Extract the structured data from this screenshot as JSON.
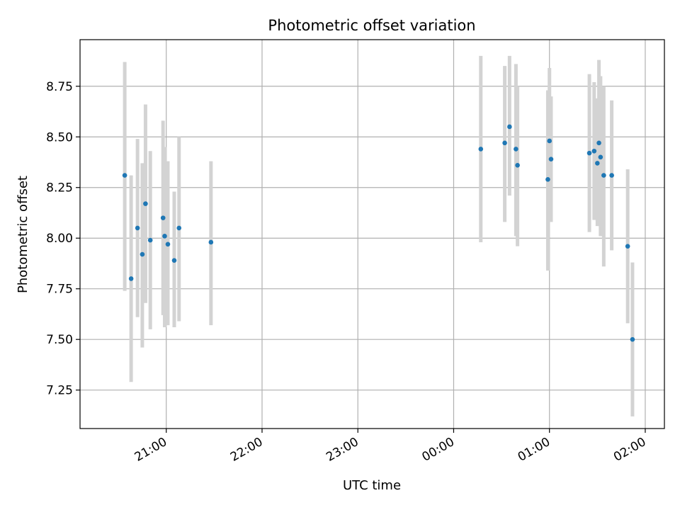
{
  "chart_data": {
    "type": "scatter",
    "title": "Photometric offset variation",
    "xlabel": "UTC time",
    "ylabel": "Photometric offset",
    "x_tick_labels": [
      "21:00",
      "22:00",
      "23:00",
      "00:00",
      "01:00",
      "02:00"
    ],
    "y_tick_labels": [
      "7.25",
      "7.50",
      "7.75",
      "8.00",
      "8.25",
      "8.50",
      "8.75"
    ],
    "grid": true,
    "marker_color": "#1f77b4",
    "errorbar_color": "#d3d3d3",
    "points": [
      {
        "time": "20:34",
        "y": 8.31,
        "lo": 7.74,
        "hi": 8.87
      },
      {
        "time": "20:38",
        "y": 7.8,
        "lo": 7.29,
        "hi": 8.31
      },
      {
        "time": "20:42",
        "y": 8.05,
        "lo": 7.61,
        "hi": 8.49
      },
      {
        "time": "20:45",
        "y": 7.92,
        "lo": 7.46,
        "hi": 8.37
      },
      {
        "time": "20:47",
        "y": 8.17,
        "lo": 7.68,
        "hi": 8.66
      },
      {
        "time": "20:50",
        "y": 7.99,
        "lo": 7.55,
        "hi": 8.43
      },
      {
        "time": "20:58",
        "y": 8.1,
        "lo": 7.62,
        "hi": 8.58
      },
      {
        "time": "20:59",
        "y": 8.01,
        "lo": 7.56,
        "hi": 8.45
      },
      {
        "time": "21:01",
        "y": 7.97,
        "lo": 7.57,
        "hi": 8.38
      },
      {
        "time": "21:05",
        "y": 7.89,
        "lo": 7.56,
        "hi": 8.23
      },
      {
        "time": "21:08",
        "y": 8.05,
        "lo": 7.59,
        "hi": 8.5
      },
      {
        "time": "21:28",
        "y": 7.98,
        "lo": 7.57,
        "hi": 8.38
      },
      {
        "time": "00:17",
        "y": 8.44,
        "lo": 7.98,
        "hi": 8.9
      },
      {
        "time": "00:32",
        "y": 8.47,
        "lo": 8.08,
        "hi": 8.85
      },
      {
        "time": "00:35",
        "y": 8.55,
        "lo": 8.21,
        "hi": 8.9
      },
      {
        "time": "00:39",
        "y": 8.44,
        "lo": 8.01,
        "hi": 8.86
      },
      {
        "time": "00:40",
        "y": 8.36,
        "lo": 7.96,
        "hi": 8.75
      },
      {
        "time": "00:59",
        "y": 8.29,
        "lo": 7.84,
        "hi": 8.73
      },
      {
        "time": "01:00",
        "y": 8.48,
        "lo": 8.12,
        "hi": 8.84
      },
      {
        "time": "01:01",
        "y": 8.39,
        "lo": 8.08,
        "hi": 8.7
      },
      {
        "time": "01:25",
        "y": 8.42,
        "lo": 8.03,
        "hi": 8.81
      },
      {
        "time": "01:28",
        "y": 8.43,
        "lo": 8.09,
        "hi": 8.77
      },
      {
        "time": "01:30",
        "y": 8.37,
        "lo": 8.06,
        "hi": 8.69
      },
      {
        "time": "01:31",
        "y": 8.47,
        "lo": 8.06,
        "hi": 8.88
      },
      {
        "time": "01:32",
        "y": 8.4,
        "lo": 8.01,
        "hi": 8.8
      },
      {
        "time": "01:34",
        "y": 8.31,
        "lo": 7.86,
        "hi": 8.75
      },
      {
        "time": "01:39",
        "y": 8.31,
        "lo": 7.94,
        "hi": 8.68
      },
      {
        "time": "01:49",
        "y": 7.96,
        "lo": 7.58,
        "hi": 8.34
      },
      {
        "time": "01:52",
        "y": 7.5,
        "lo": 7.12,
        "hi": 7.88
      }
    ]
  }
}
